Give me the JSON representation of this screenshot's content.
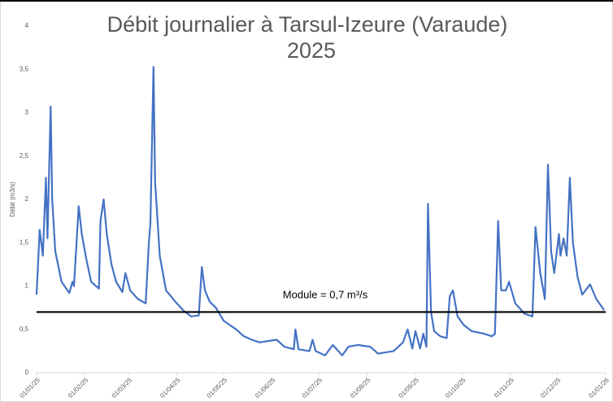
{
  "chart_data": {
    "type": "line",
    "title": "Débit journalier à Tarsul-Izeure (Varaude)",
    "subtitle": "2025",
    "y_label": "Débit (m3/s)",
    "annotation": "Module = 0,7 m³/s",
    "module": 0.7,
    "xlim": [
      "01/01/25",
      "01/01/26"
    ],
    "xticks": [
      "01/01/25",
      "01/02/25",
      "01/03/25",
      "01/04/25",
      "01/05/25",
      "01/06/25",
      "01/07/25",
      "01/08/25",
      "01/09/25",
      "01/10/25",
      "01/11/25",
      "01/12/25",
      "01/01/26"
    ],
    "ylim": [
      0,
      4
    ],
    "yticks": [
      0,
      {
        "value": 0.5,
        "label": "0,5"
      },
      1,
      {
        "value": 1.5,
        "label": "1,5"
      },
      2,
      {
        "value": 2.5,
        "label": "2,5"
      },
      3,
      {
        "value": 3.5,
        "label": "3,5"
      },
      4
    ],
    "x": [
      "01/01/25",
      "03/01/25",
      "05/01/25",
      "07/01/25",
      "08/01/25",
      "10/01/25",
      "11/01/25",
      "13/01/25",
      "17/01/25",
      "22/01/25",
      "24/01/25",
      "25/01/25",
      "28/01/25",
      "30/01/25",
      "02/02/25",
      "05/02/25",
      "10/02/25",
      "11/02/25",
      "13/02/25",
      "15/02/25",
      "18/02/25",
      "21/02/25",
      "25/02/25",
      "27/02/25",
      "02/03/25",
      "07/03/25",
      "12/03/25",
      "14/03/25",
      "15/03/25",
      "17/03/25",
      "18/03/25",
      "21/03/25",
      "25/03/25",
      "31/03/25",
      "05/04/25",
      "10/04/25",
      "15/04/25",
      "17/04/25",
      "19/04/25",
      "22/04/25",
      "26/04/25",
      "01/05/25",
      "09/05/25",
      "14/05/25",
      "19/05/25",
      "24/05/25",
      "04/06/25",
      "09/06/25",
      "15/06/25",
      "16/06/25",
      "18/06/25",
      "25/06/25",
      "27/06/25",
      "29/06/25",
      "05/07/25",
      "10/07/25",
      "16/07/25",
      "20/07/25",
      "26/07/25",
      "03/08/25",
      "08/08/25",
      "18/08/25",
      "24/08/25",
      "27/08/25",
      "30/08/25",
      "01/09/25",
      "04/09/25",
      "06/09/25",
      "08/09/25",
      "09/09/25",
      "11/09/25",
      "13/09/25",
      "17/09/25",
      "21/09/25",
      "23/09/25",
      "25/09/25",
      "28/09/25",
      "02/10/25",
      "07/10/25",
      "15/10/25",
      "20/10/25",
      "22/10/25",
      "24/10/25",
      "26/10/25",
      "29/10/25",
      "31/10/25",
      "04/11/25",
      "10/11/25",
      "15/11/25",
      "17/11/25",
      "20/11/25",
      "23/11/25",
      "25/11/25",
      "27/11/25",
      "29/11/25",
      "02/12/25",
      "03/12/25",
      "05/12/25",
      "07/12/25",
      "09/12/25",
      "11/12/25",
      "14/12/25",
      "17/12/25",
      "22/12/25",
      "26/12/25",
      "31/12/25"
    ],
    "series": [
      {
        "name": "Débit",
        "color": "#4472c4",
        "values": [
          0.9,
          1.65,
          1.35,
          2.25,
          1.55,
          3.07,
          2.0,
          1.4,
          1.05,
          0.92,
          1.05,
          1.0,
          1.92,
          1.6,
          1.3,
          1.05,
          0.97,
          1.75,
          2.0,
          1.6,
          1.25,
          1.05,
          0.93,
          1.15,
          0.95,
          0.85,
          0.8,
          1.5,
          1.72,
          3.53,
          2.2,
          1.35,
          0.95,
          0.82,
          0.72,
          0.65,
          0.66,
          1.22,
          0.95,
          0.82,
          0.75,
          0.6,
          0.5,
          0.42,
          0.38,
          0.35,
          0.38,
          0.3,
          0.27,
          0.5,
          0.27,
          0.25,
          0.38,
          0.25,
          0.2,
          0.32,
          0.2,
          0.3,
          0.32,
          0.3,
          0.22,
          0.25,
          0.35,
          0.5,
          0.28,
          0.48,
          0.28,
          0.45,
          0.3,
          1.95,
          0.7,
          0.48,
          0.42,
          0.4,
          0.88,
          0.95,
          0.65,
          0.55,
          0.48,
          0.45,
          0.42,
          0.45,
          1.75,
          0.95,
          0.95,
          1.05,
          0.8,
          0.68,
          0.65,
          1.68,
          1.15,
          0.85,
          2.4,
          1.4,
          1.15,
          1.6,
          1.35,
          1.55,
          1.35,
          2.25,
          1.5,
          1.1,
          0.9,
          1.02,
          0.85,
          0.72
        ]
      }
    ]
  }
}
